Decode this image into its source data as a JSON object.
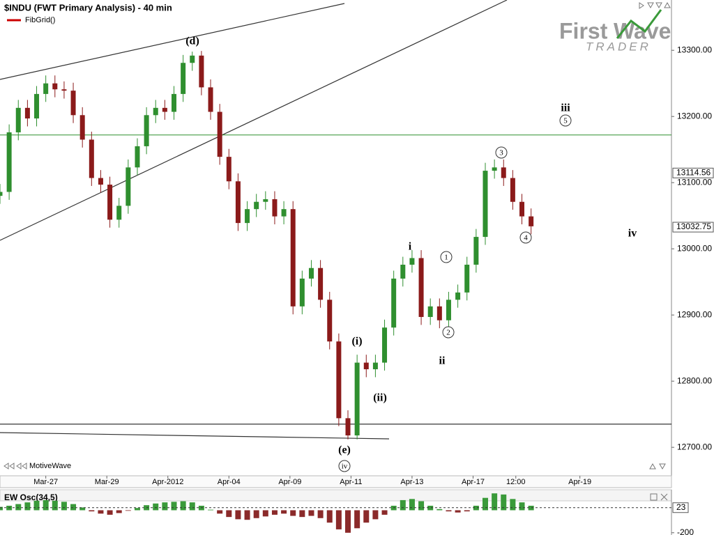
{
  "logo": {
    "first": "First",
    "wave": "Wave",
    "sub": "TRADER"
  },
  "chart_data": [
    {
      "type": "candlestick",
      "title": "$INDU (FWT Primary Analysis) - 40 min",
      "indicator": "FibGrid()",
      "source": "MotiveWave",
      "up_color": "#2f8f2f",
      "down_color": "#8b1a1a",
      "x": [
        0,
        3,
        6,
        9,
        12,
        15,
        18,
        21,
        24,
        27,
        30,
        33,
        36,
        39,
        42,
        45,
        48,
        51,
        54,
        57,
        60,
        63,
        66,
        69,
        72,
        75,
        78,
        81,
        84,
        87,
        90,
        93,
        96,
        99,
        102,
        105,
        108,
        111,
        114,
        117,
        120,
        123,
        126,
        129,
        132,
        135,
        138,
        141,
        144,
        147,
        150,
        153,
        156,
        159,
        162,
        165,
        168,
        171,
        174
      ],
      "open": [
        13080,
        13086,
        13176,
        13213,
        13197,
        13234,
        13250,
        13241,
        13239,
        13202,
        13165,
        13107,
        13097,
        13044,
        13065,
        13123,
        13155,
        13202,
        13213,
        13207,
        13234,
        13281,
        13292,
        13244,
        13207,
        13139,
        13102,
        13039,
        13060,
        13071,
        13075,
        13049,
        13060,
        12913,
        12955,
        12971,
        12923,
        12860,
        12744,
        12718,
        12828,
        12818,
        12828,
        12881,
        12955,
        12976,
        12986,
        12897,
        12913,
        12892,
        12923,
        12934,
        12976,
        13018,
        13118,
        13123,
        13107,
        13071,
        13049
      ],
      "high": [
        13098,
        13188,
        13225,
        13225,
        13246,
        13262,
        13262,
        13253,
        13251,
        13214,
        13177,
        13119,
        13109,
        13077,
        13135,
        13167,
        13214,
        13225,
        13225,
        13246,
        13293,
        13298,
        13299,
        13256,
        13219,
        13151,
        13114,
        13072,
        13083,
        13087,
        13087,
        13072,
        13072,
        12967,
        12983,
        12983,
        12935,
        12872,
        12756,
        12840,
        12840,
        12840,
        12893,
        12967,
        12988,
        12998,
        12998,
        12925,
        12925,
        12935,
        12946,
        12988,
        13030,
        13130,
        13135,
        13135,
        13119,
        13083,
        13061
      ],
      "low": [
        13068,
        13074,
        13164,
        13185,
        13185,
        13222,
        13229,
        13227,
        13190,
        13153,
        13095,
        13085,
        13032,
        13032,
        13053,
        13111,
        13143,
        13190,
        13195,
        13195,
        13222,
        13269,
        13232,
        13195,
        13127,
        13090,
        13027,
        13027,
        13048,
        13059,
        13037,
        13037,
        12901,
        12901,
        12943,
        12911,
        12848,
        12732,
        12712,
        12712,
        12806,
        12806,
        12816,
        12869,
        12943,
        12964,
        12885,
        12885,
        12880,
        12880,
        12911,
        12922,
        12964,
        13006,
        13106,
        13095,
        13059,
        13037,
        13022
      ],
      "close": [
        13086,
        13176,
        13213,
        13197,
        13234,
        13250,
        13241,
        13239,
        13202,
        13165,
        13107,
        13097,
        13044,
        13065,
        13123,
        13155,
        13202,
        13213,
        13207,
        13234,
        13281,
        13292,
        13244,
        13207,
        13139,
        13102,
        13039,
        13060,
        13071,
        13075,
        13049,
        13060,
        12913,
        12955,
        12971,
        12923,
        12860,
        12744,
        12718,
        12828,
        12818,
        12828,
        12881,
        12955,
        12976,
        12986,
        12897,
        12913,
        12892,
        12923,
        12934,
        12976,
        13018,
        13118,
        13123,
        13107,
        13071,
        13049,
        13034
      ],
      "xlim": [
        0,
        220
      ],
      "xticks": [
        {
          "value": 15,
          "label": "Mar-27"
        },
        {
          "value": 35,
          "label": "Mar-29"
        },
        {
          "value": 55,
          "label": "Apr-2012"
        },
        {
          "value": 75,
          "label": "Apr-04"
        },
        {
          "value": 95,
          "label": "Apr-09"
        },
        {
          "value": 115,
          "label": "Apr-11"
        },
        {
          "value": 135,
          "label": "Apr-13"
        },
        {
          "value": 155,
          "label": "Apr-17"
        },
        {
          "value": 169,
          "label": "12:00"
        },
        {
          "value": 190,
          "label": "Apr-19"
        }
      ],
      "ylim": [
        12657,
        13376
      ],
      "yticks": [
        {
          "value": 12700,
          "label": "12700.00"
        },
        {
          "value": 12800,
          "label": "12800.00"
        },
        {
          "value": 12900,
          "label": "12900.00"
        },
        {
          "value": 13000,
          "label": "13000.00"
        },
        {
          "value": 13100,
          "label": "13100.00"
        },
        {
          "value": 13200,
          "label": "13200.00"
        },
        {
          "value": 13300,
          "label": "13300.00"
        }
      ],
      "hlines": [
        {
          "value": 13172,
          "color": "#2f8f2f"
        },
        {
          "value": 12735,
          "color": "#000000"
        }
      ],
      "price_markers": [
        {
          "value": 13114.56,
          "label": "13114.56"
        },
        {
          "value": 13032.75,
          "label": "13032.75"
        }
      ],
      "annotations": [
        "(d)",
        "(e)",
        "(i)",
        "(ii)",
        "i",
        "ii",
        "iii",
        "iv"
      ],
      "circled": [
        "iv",
        "1",
        "2",
        "3",
        "4",
        "5"
      ]
    },
    {
      "type": "bar",
      "title": "EW Osc(34,5)",
      "up_color": "#3a9a3a",
      "down_color": "#8b2a2a",
      "x": [
        0,
        3,
        6,
        9,
        12,
        15,
        18,
        21,
        24,
        27,
        30,
        33,
        36,
        39,
        42,
        45,
        48,
        51,
        54,
        57,
        60,
        63,
        66,
        69,
        72,
        75,
        78,
        81,
        84,
        87,
        90,
        93,
        96,
        99,
        102,
        105,
        108,
        111,
        114,
        117,
        120,
        123,
        126,
        129,
        132,
        135,
        138,
        141,
        144,
        147,
        150,
        153,
        156,
        159,
        162,
        165,
        168,
        171,
        174
      ],
      "values": [
        30,
        40,
        55,
        70,
        85,
        90,
        85,
        75,
        55,
        25,
        -10,
        -30,
        -40,
        -25,
        -5,
        20,
        45,
        60,
        70,
        75,
        80,
        70,
        40,
        5,
        -30,
        -60,
        -80,
        -85,
        -70,
        -55,
        -40,
        -30,
        -50,
        -60,
        -50,
        -70,
        -110,
        -170,
        -200,
        -160,
        -110,
        -80,
        -40,
        40,
        90,
        100,
        80,
        40,
        10,
        -10,
        -20,
        -10,
        40,
        110,
        150,
        140,
        100,
        70,
        40
      ],
      "xlim": [
        0,
        220
      ],
      "ylim": [
        -220,
        170
      ],
      "yticks": [
        -200
      ],
      "marker": 23
    }
  ]
}
